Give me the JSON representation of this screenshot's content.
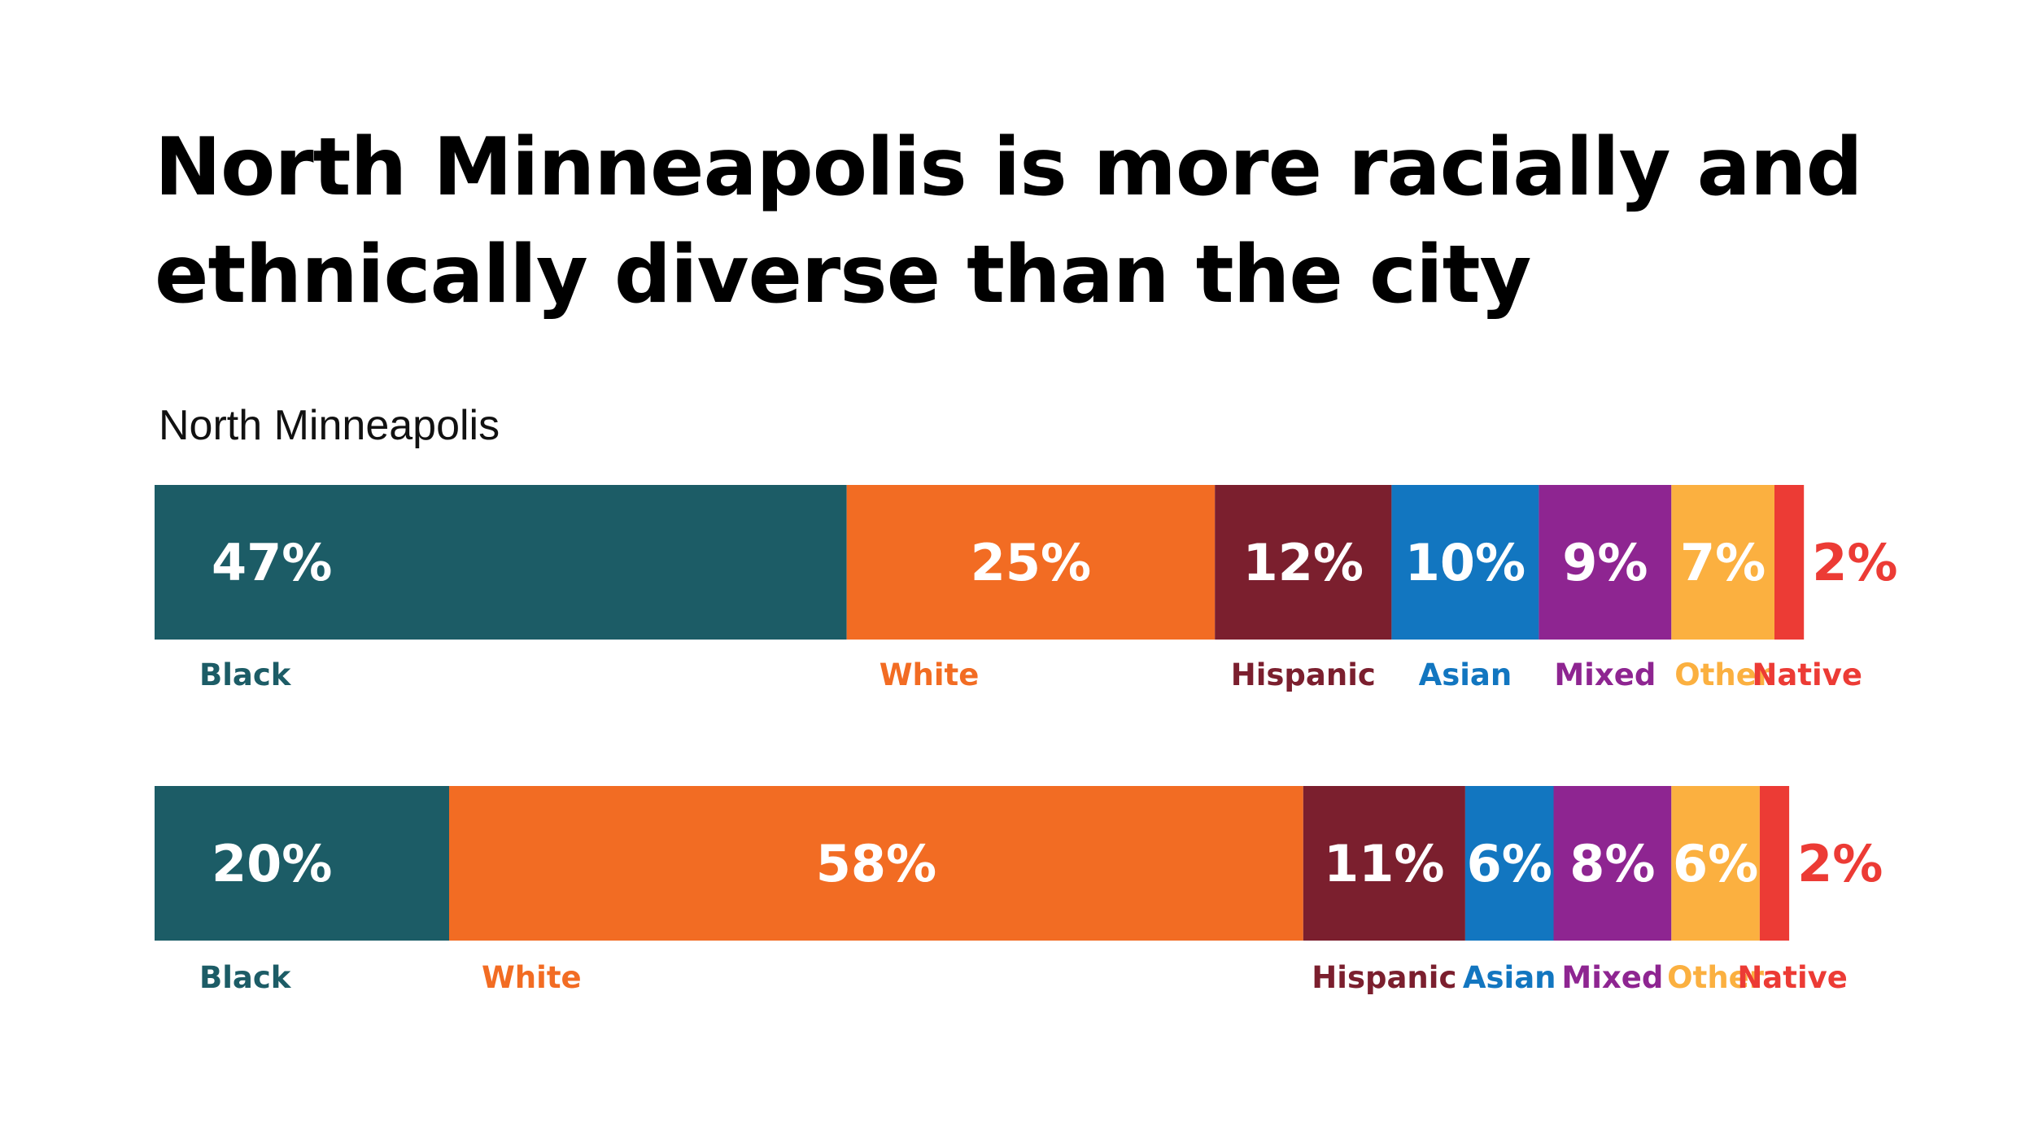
{
  "chart_data": {
    "type": "bar",
    "stacked": true,
    "orientation": "horizontal",
    "title": "North Minneapolis is more racially and ethnically diverse than the city",
    "categories": [
      "Black",
      "White",
      "Hispanic",
      "Asian",
      "Mixed",
      "Other",
      "Native"
    ],
    "colors": {
      "Black": "#1c5c66",
      "White": "#f26c23",
      "Hispanic": "#7b1f2e",
      "Asian": "#1276c0",
      "Mixed": "#8e2591",
      "Other": "#fbb040",
      "Native": "#ec3b35"
    },
    "series": [
      {
        "name": "North Minneapolis",
        "values": [
          47,
          25,
          12,
          10,
          9,
          7,
          2
        ],
        "labels": [
          "47%",
          "25%",
          "12%",
          "10%",
          "9%",
          "7%",
          "2%"
        ]
      },
      {
        "name": "",
        "values": [
          20,
          58,
          11,
          6,
          8,
          6,
          2
        ],
        "labels": [
          "20%",
          "58%",
          "11%",
          "6%",
          "8%",
          "6%",
          "2%"
        ]
      }
    ],
    "xlabel": "",
    "ylabel": ""
  }
}
